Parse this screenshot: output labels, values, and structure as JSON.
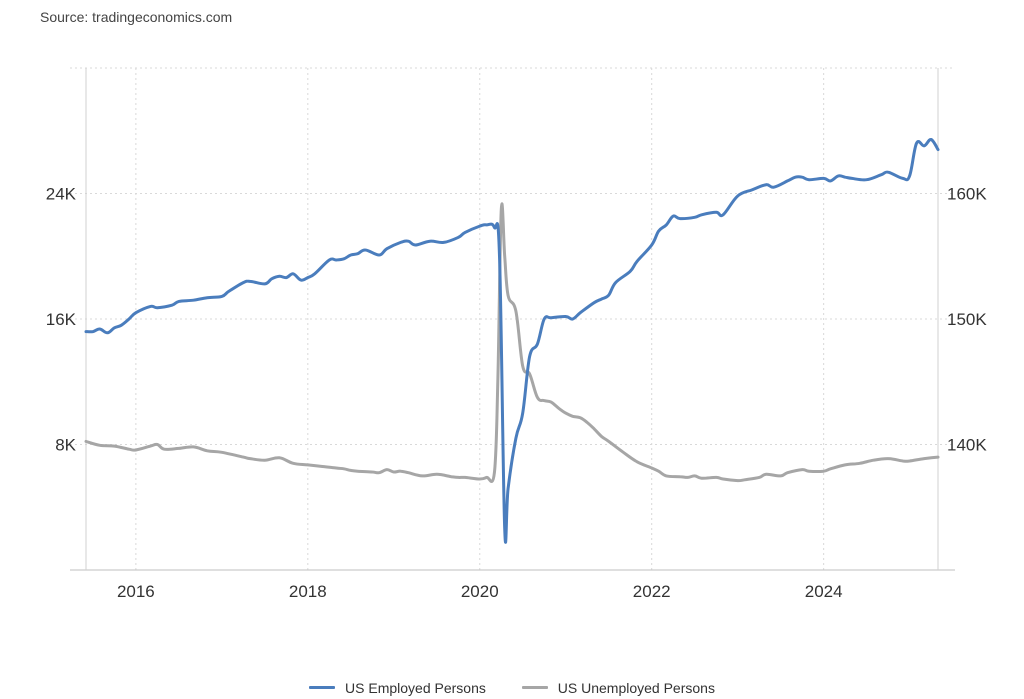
{
  "source": "Source: tradingeconomics.com",
  "chart_data": {
    "type": "line",
    "title": "",
    "xlabel": "",
    "ylabel": "",
    "grid": true,
    "legend_position": "bottom-center",
    "x_ticks": [
      "2016",
      "2018",
      "2020",
      "2022",
      "2024"
    ],
    "xlim": [
      2015.42,
      2025.33
    ],
    "y_left": {
      "ticks": [
        "8K",
        "16K",
        "24K"
      ],
      "tick_values": [
        8000,
        16000,
        24000
      ],
      "lim": [
        0,
        32000
      ]
    },
    "y_right": {
      "ticks": [
        "140K",
        "150K",
        "160K"
      ],
      "tick_values": [
        140000,
        150000,
        160000
      ],
      "lim": [
        130000,
        170000
      ]
    },
    "series": [
      {
        "name": "US Employed Persons",
        "axis": "right",
        "color": "#4a7dbd",
        "x": [
          2015.42,
          2015.5,
          2015.58,
          2015.67,
          2015.75,
          2015.83,
          2015.92,
          2016.0,
          2016.17,
          2016.25,
          2016.42,
          2016.5,
          2016.67,
          2016.83,
          2017.0,
          2017.08,
          2017.25,
          2017.33,
          2017.5,
          2017.58,
          2017.67,
          2017.75,
          2017.83,
          2017.92,
          2018.0,
          2018.08,
          2018.25,
          2018.33,
          2018.42,
          2018.5,
          2018.58,
          2018.67,
          2018.83,
          2018.92,
          2019.08,
          2019.17,
          2019.25,
          2019.42,
          2019.58,
          2019.75,
          2019.83,
          2020.0,
          2020.08,
          2020.17,
          2020.23,
          2020.29,
          2020.33,
          2020.42,
          2020.5,
          2020.58,
          2020.67,
          2020.75,
          2020.83,
          2021.0,
          2021.08,
          2021.17,
          2021.33,
          2021.42,
          2021.5,
          2021.58,
          2021.75,
          2021.83,
          2022.0,
          2022.08,
          2022.17,
          2022.25,
          2022.33,
          2022.5,
          2022.58,
          2022.75,
          2022.83,
          2023.0,
          2023.17,
          2023.33,
          2023.42,
          2023.58,
          2023.67,
          2023.75,
          2023.83,
          2024.0,
          2024.08,
          2024.17,
          2024.25,
          2024.33,
          2024.5,
          2024.67,
          2024.75,
          2024.92,
          2025.0,
          2025.08,
          2025.17,
          2025.25,
          2025.33
        ],
        "values": [
          149000,
          149000,
          149200,
          148900,
          149300,
          149500,
          150000,
          150500,
          151000,
          150900,
          151100,
          151400,
          151500,
          151700,
          151800,
          152200,
          152900,
          153000,
          152800,
          153200,
          153400,
          153300,
          153600,
          153100,
          153300,
          153600,
          154700,
          154700,
          154800,
          155100,
          155200,
          155500,
          155100,
          155600,
          156100,
          156200,
          155900,
          156200,
          156100,
          156500,
          156900,
          157400,
          157500,
          157300,
          155000,
          133300,
          136500,
          140500,
          142500,
          147000,
          148000,
          150000,
          150100,
          150200,
          150000,
          150500,
          151300,
          151600,
          151900,
          152900,
          153800,
          154600,
          155900,
          157000,
          157500,
          158200,
          158000,
          158100,
          158300,
          158500,
          158300,
          159800,
          160300,
          160700,
          160500,
          161000,
          161300,
          161300,
          161100,
          161200,
          161000,
          161400,
          161300,
          161200,
          161100,
          161500,
          161700,
          161200,
          161400,
          164000,
          163800,
          164300,
          163500
        ]
      },
      {
        "name": "US Unemployed Persons",
        "axis": "left",
        "color": "#a6a6a6",
        "x": [
          2015.42,
          2015.58,
          2015.75,
          2015.92,
          2016.0,
          2016.17,
          2016.25,
          2016.33,
          2016.5,
          2016.67,
          2016.83,
          2017.0,
          2017.25,
          2017.33,
          2017.5,
          2017.67,
          2017.83,
          2018.0,
          2018.17,
          2018.33,
          2018.42,
          2018.5,
          2018.58,
          2018.75,
          2018.83,
          2018.92,
          2019.0,
          2019.08,
          2019.17,
          2019.33,
          2019.5,
          2019.67,
          2019.75,
          2019.83,
          2020.0,
          2020.08,
          2020.17,
          2020.21,
          2020.25,
          2020.29,
          2020.33,
          2020.42,
          2020.5,
          2020.58,
          2020.67,
          2020.75,
          2020.83,
          2020.92,
          2021.0,
          2021.08,
          2021.17,
          2021.25,
          2021.33,
          2021.42,
          2021.5,
          2021.67,
          2021.83,
          2022.0,
          2022.08,
          2022.17,
          2022.33,
          2022.42,
          2022.5,
          2022.58,
          2022.75,
          2022.83,
          2023.0,
          2023.08,
          2023.25,
          2023.33,
          2023.5,
          2023.58,
          2023.75,
          2023.83,
          2024.0,
          2024.08,
          2024.25,
          2024.42,
          2024.58,
          2024.75,
          2024.92,
          2025.0,
          2025.17,
          2025.33
        ],
        "values": [
          8200,
          7950,
          7900,
          7700,
          7650,
          7900,
          8000,
          7700,
          7750,
          7850,
          7600,
          7500,
          7200,
          7100,
          7000,
          7150,
          6800,
          6700,
          6600,
          6500,
          6450,
          6350,
          6300,
          6250,
          6200,
          6400,
          6250,
          6300,
          6200,
          6000,
          6100,
          5950,
          5900,
          5900,
          5800,
          5900,
          6200,
          12000,
          23000,
          20000,
          17500,
          16500,
          13000,
          12500,
          11000,
          10800,
          10700,
          10300,
          10000,
          9800,
          9700,
          9400,
          9000,
          8500,
          8200,
          7500,
          6900,
          6500,
          6300,
          6000,
          5950,
          5900,
          6000,
          5850,
          5900,
          5800,
          5700,
          5750,
          5900,
          6100,
          6000,
          6200,
          6400,
          6300,
          6300,
          6450,
          6700,
          6800,
          7000,
          7100,
          6950,
          6950,
          7100,
          7200
        ]
      }
    ]
  }
}
